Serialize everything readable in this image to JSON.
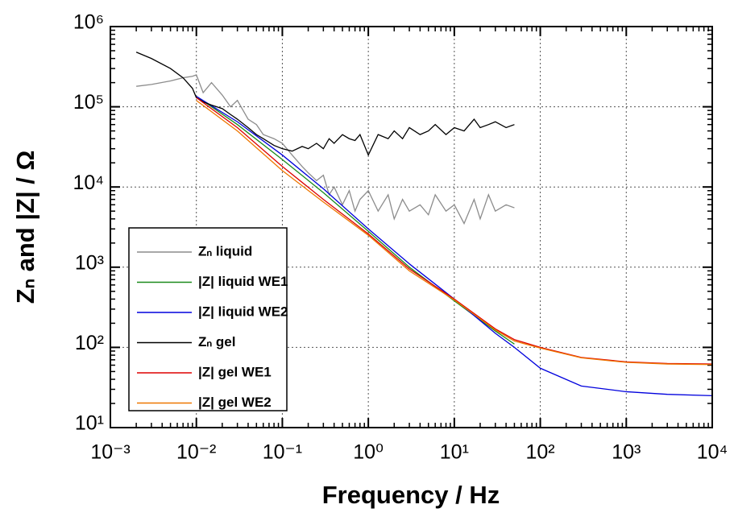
{
  "chart_data": {
    "type": "line",
    "xlabel": "Frequency  /  Hz",
    "ylabel": "Zₙ and |Z|  /  Ω",
    "xscale": "log",
    "yscale": "log",
    "grid": true,
    "legend": "lower left",
    "xlim": [
      0.001,
      10000
    ],
    "ylim": [
      10,
      1000000
    ],
    "xticks": [
      {
        "value": 0.001,
        "label": "10⁻³"
      },
      {
        "value": 0.01,
        "label": "10⁻²"
      },
      {
        "value": 0.1,
        "label": "10⁻¹"
      },
      {
        "value": 1,
        "label": "10⁰"
      },
      {
        "value": 10,
        "label": "10¹"
      },
      {
        "value": 100,
        "label": "10²"
      },
      {
        "value": 1000,
        "label": "10³"
      },
      {
        "value": 10000,
        "label": "10⁴"
      }
    ],
    "yticks": [
      {
        "value": 10,
        "label": "10¹"
      },
      {
        "value": 100,
        "label": "10²"
      },
      {
        "value": 1000,
        "label": "10³"
      },
      {
        "value": 10000,
        "label": "10⁴"
      },
      {
        "value": 100000,
        "label": "10⁵"
      },
      {
        "value": 1000000,
        "label": "10⁶"
      }
    ],
    "series": [
      {
        "name": "Zₙ liquid",
        "color": "#8c8c8c",
        "x": [
          0.002,
          0.003,
          0.005,
          0.007,
          0.009,
          0.01,
          0.012,
          0.015,
          0.02,
          0.025,
          0.03,
          0.04,
          0.05,
          0.06,
          0.08,
          0.1,
          0.13,
          0.17,
          0.2,
          0.25,
          0.3,
          0.35,
          0.4,
          0.5,
          0.6,
          0.7,
          0.8,
          1,
          1.3,
          1.7,
          2,
          2.5,
          3,
          4,
          5,
          6,
          8,
          10,
          13,
          17,
          20,
          25,
          30,
          40,
          50
        ],
        "values": [
          180000,
          190000,
          210000,
          230000,
          240000,
          250000,
          150000,
          200000,
          140000,
          100000,
          120000,
          70000,
          60000,
          45000,
          40000,
          35000,
          25000,
          18000,
          15000,
          12000,
          14000,
          8000,
          10000,
          6000,
          9000,
          5000,
          7000,
          9000,
          5000,
          8000,
          4000,
          7000,
          5000,
          6000,
          4500,
          8000,
          5000,
          6000,
          3500,
          7000,
          4000,
          8000,
          5000,
          6000,
          5500
        ]
      },
      {
        "name": "|Z| liquid WE1",
        "color": "#1a8a1a",
        "x": [
          0.01,
          0.03,
          0.1,
          0.3,
          1,
          3,
          10,
          30,
          50
        ],
        "values": [
          135000,
          60000,
          22000,
          8500,
          2800,
          1000,
          380,
          160,
          110
        ]
      },
      {
        "name": "|Z| liquid WE2",
        "color": "#0000dd",
        "x": [
          0.01,
          0.03,
          0.1,
          0.3,
          1,
          3,
          10,
          30,
          50,
          100,
          300,
          1000,
          3000,
          10000
        ],
        "values": [
          135000,
          65000,
          25000,
          9500,
          3000,
          1100,
          400,
          150,
          100,
          55,
          33,
          28,
          26,
          25
        ]
      },
      {
        "name": "Zₙ gel",
        "color": "#000000",
        "x": [
          0.002,
          0.003,
          0.005,
          0.007,
          0.009,
          0.01,
          0.012,
          0.015,
          0.02,
          0.025,
          0.03,
          0.04,
          0.05,
          0.06,
          0.08,
          0.1,
          0.13,
          0.17,
          0.2,
          0.25,
          0.3,
          0.35,
          0.4,
          0.5,
          0.6,
          0.7,
          0.8,
          1,
          1.3,
          1.7,
          2,
          2.5,
          3,
          4,
          5,
          6,
          8,
          10,
          13,
          17,
          20,
          25,
          30,
          40,
          50
        ],
        "values": [
          480000,
          400000,
          300000,
          230000,
          170000,
          130000,
          115000,
          105000,
          95000,
          80000,
          70000,
          55000,
          45000,
          40000,
          33000,
          30000,
          28000,
          32000,
          30000,
          35000,
          30000,
          40000,
          35000,
          45000,
          40000,
          38000,
          45000,
          25000,
          45000,
          40000,
          50000,
          40000,
          55000,
          45000,
          50000,
          60000,
          45000,
          55000,
          50000,
          70000,
          55000,
          60000,
          65000,
          55000,
          60000
        ]
      },
      {
        "name": "|Z| gel WE1",
        "color": "#dd0000",
        "x": [
          0.01,
          0.03,
          0.1,
          0.3,
          1,
          3,
          10,
          30,
          50,
          100,
          300,
          1000,
          3000,
          10000
        ],
        "values": [
          130000,
          55000,
          18000,
          7000,
          2600,
          950,
          400,
          170,
          125,
          100,
          75,
          66,
          63,
          62
        ]
      },
      {
        "name": "|Z| gel WE2",
        "color": "#ee7700",
        "x": [
          0.01,
          0.03,
          0.1,
          0.3,
          1,
          3,
          10,
          30,
          50,
          100,
          300,
          1000,
          3000,
          10000
        ],
        "values": [
          120000,
          50000,
          16000,
          6500,
          2500,
          900,
          390,
          165,
          120,
          98,
          74,
          65,
          62,
          61
        ]
      }
    ]
  }
}
